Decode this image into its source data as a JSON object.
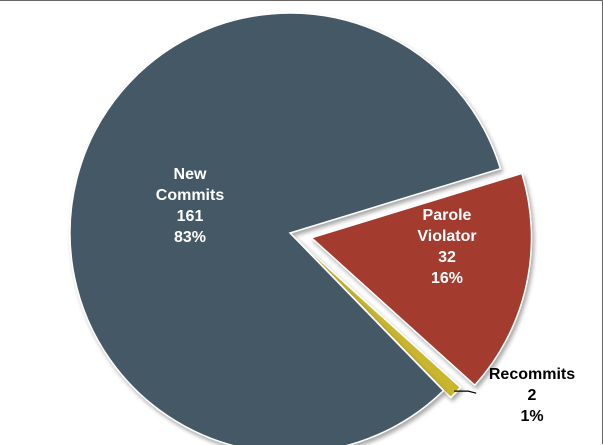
{
  "chart_data": {
    "type": "pie",
    "slices": [
      {
        "name": "New Commits",
        "value": 161,
        "percent": "83%",
        "color": "#455866",
        "label_color": "#ffffff"
      },
      {
        "name": "Parole Violator",
        "value": 32,
        "percent": "16%",
        "color": "#a33a2d",
        "label_color": "#ffffff"
      },
      {
        "name": "Recommits",
        "value": 2,
        "percent": "1%",
        "color": "#c9b52e",
        "label_color": "#000000"
      }
    ]
  }
}
